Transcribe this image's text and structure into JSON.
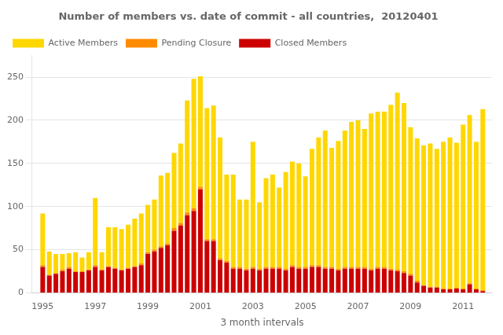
{
  "chart_data": {
    "type": "bar",
    "title": "Number of members vs. date of commit - all countries,  20120401",
    "x_label": "3 month intervals",
    "stacked": true,
    "grid": true,
    "legend": "upper left",
    "xlim": [
      1994.6,
      2012.1
    ],
    "xticks": [
      1995,
      1997,
      1999,
      2001,
      2003,
      2005,
      2007,
      2009,
      2011
    ],
    "ylim": [
      0,
      275
    ],
    "yticks": [
      0,
      50,
      100,
      150,
      200,
      250
    ],
    "x": [
      1995.0,
      1995.25,
      1995.5,
      1995.75,
      1996.0,
      1996.25,
      1996.5,
      1996.75,
      1997.0,
      1997.25,
      1997.5,
      1997.75,
      1998.0,
      1998.25,
      1998.5,
      1998.75,
      1999.0,
      1999.25,
      1999.5,
      1999.75,
      2000.0,
      2000.25,
      2000.5,
      2000.75,
      2001.0,
      2001.25,
      2001.5,
      2001.75,
      2002.0,
      2002.25,
      2002.5,
      2002.75,
      2003.0,
      2003.25,
      2003.5,
      2003.75,
      2004.0,
      2004.25,
      2004.5,
      2004.75,
      2005.0,
      2005.25,
      2005.5,
      2005.75,
      2006.0,
      2006.25,
      2006.5,
      2006.75,
      2007.0,
      2007.25,
      2007.5,
      2007.75,
      2008.0,
      2008.25,
      2008.5,
      2008.75,
      2009.0,
      2009.25,
      2009.5,
      2009.75,
      2010.0,
      2010.25,
      2010.5,
      2010.75,
      2011.0,
      2011.25,
      2011.5,
      2011.75
    ],
    "series": [
      {
        "name": "Closed Members",
        "color": "#CC0000",
        "values": [
          30,
          20,
          22,
          25,
          28,
          24,
          24,
          26,
          30,
          26,
          30,
          28,
          26,
          28,
          30,
          32,
          45,
          48,
          52,
          55,
          72,
          78,
          90,
          95,
          120,
          60,
          60,
          38,
          35,
          28,
          28,
          26,
          28,
          26,
          28,
          28,
          28,
          26,
          30,
          28,
          28,
          30,
          30,
          28,
          28,
          26,
          28,
          28,
          28,
          28,
          26,
          28,
          28,
          26,
          25,
          23,
          20,
          12,
          8,
          6,
          6,
          4,
          4,
          5,
          4,
          10,
          4,
          2
        ]
      },
      {
        "name": "Pending Closure",
        "color": "#FF8C00",
        "values": [
          2,
          1,
          1,
          2,
          2,
          1,
          1,
          1,
          2,
          1,
          1,
          1,
          1,
          1,
          1,
          2,
          2,
          2,
          2,
          2,
          3,
          3,
          3,
          3,
          3,
          2,
          2,
          2,
          2,
          2,
          2,
          2,
          2,
          2,
          2,
          2,
          2,
          2,
          2,
          2,
          2,
          2,
          2,
          2,
          2,
          2,
          2,
          2,
          2,
          2,
          2,
          2,
          2,
          2,
          2,
          2,
          2,
          2,
          1,
          1,
          1,
          1,
          1,
          1,
          1,
          1,
          1,
          1
        ]
      },
      {
        "name": "Active Members",
        "color": "#FFD700",
        "values": [
          60,
          27,
          22,
          18,
          16,
          22,
          16,
          20,
          78,
          20,
          45,
          47,
          47,
          50,
          55,
          58,
          55,
          58,
          82,
          82,
          87,
          92,
          130,
          150,
          128,
          152,
          155,
          140,
          100,
          107,
          78,
          80,
          145,
          77,
          103,
          107,
          92,
          112,
          120,
          120,
          105,
          135,
          148,
          158,
          138,
          148,
          158,
          168,
          170,
          160,
          180,
          180,
          180,
          190,
          205,
          195,
          170,
          165,
          162,
          166,
          160,
          170,
          175,
          168,
          190,
          195,
          170,
          210
        ]
      }
    ]
  }
}
